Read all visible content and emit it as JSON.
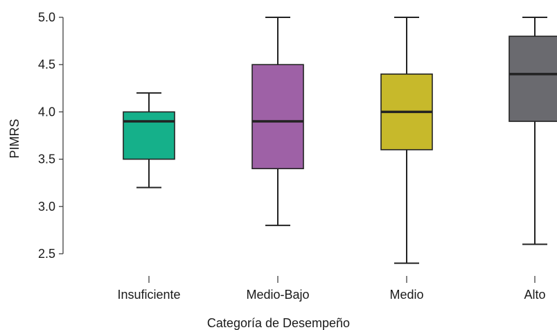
{
  "chart_data": {
    "type": "boxplot",
    "xlabel": "Categoría de Desempeño",
    "ylabel": "PIMRS",
    "ylim": [
      2.4,
      5.05
    ],
    "yticks": [
      "2.5",
      "3.0",
      "3.5",
      "4.0",
      "4.5",
      "5.0"
    ],
    "grid": false,
    "categories": [
      "Insuficiente",
      "Medio-Bajo",
      "Medio",
      "Alto"
    ],
    "boxes": [
      {
        "category": "Insuficiente",
        "min": 3.2,
        "q1": 3.5,
        "median": 3.9,
        "q3": 4.0,
        "max": 4.2,
        "color": "#15b08a"
      },
      {
        "category": "Medio-Bajo",
        "min": 2.8,
        "q1": 3.4,
        "median": 3.9,
        "q3": 4.5,
        "max": 5.0,
        "color": "#9e61a6"
      },
      {
        "category": "Medio",
        "min": 2.4,
        "q1": 3.6,
        "median": 4.0,
        "q3": 4.4,
        "max": 5.0,
        "color": "#c7b92b"
      },
      {
        "category": "Alto",
        "min": 2.6,
        "q1": 3.9,
        "median": 4.4,
        "q3": 4.8,
        "max": 5.0,
        "color": "#6a6a6f"
      }
    ]
  }
}
